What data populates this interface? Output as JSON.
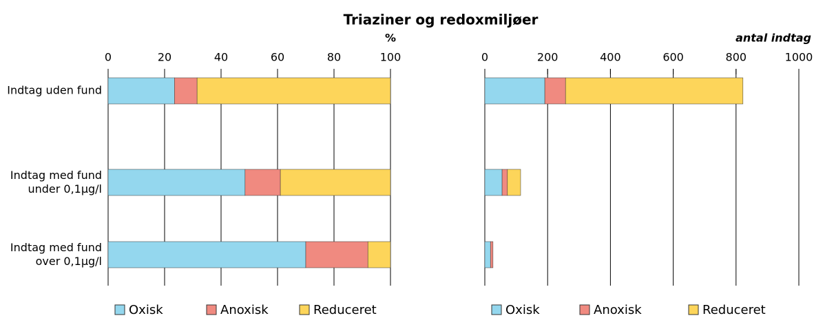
{
  "chart_data": [
    {
      "type": "bar",
      "orientation": "horizontal",
      "stacked": true,
      "title": "Triaziner og redoxmiljøer",
      "xlabel": "%",
      "categories": [
        "Indtag uden fund",
        "Indtag med fund\nunder 0,1µg/l",
        "Indtag med fund\nover 0,1µg/l"
      ],
      "series": [
        {
          "name": "Oxisk",
          "color": "#94d7ee",
          "values": [
            23.5,
            48.5,
            70
          ]
        },
        {
          "name": "Anoxisk",
          "color": "#f08a80",
          "values": [
            8,
            12.5,
            22
          ]
        },
        {
          "name": "Reduceret",
          "color": "#fdd55a",
          "values": [
            68.5,
            39,
            8
          ]
        }
      ],
      "xlim": [
        0,
        100
      ],
      "xticks": [
        0,
        20,
        40,
        60,
        80,
        100
      ],
      "grid": true,
      "legend": "bottom"
    },
    {
      "type": "bar",
      "orientation": "horizontal",
      "stacked": true,
      "xlabel": "antal indtag",
      "series": [
        {
          "name": "Oxisk",
          "color": "#94d7ee",
          "values": [
            191,
            55,
            18
          ]
        },
        {
          "name": "Anoxisk",
          "color": "#f08a80",
          "values": [
            66,
            17,
            8
          ]
        },
        {
          "name": "Reduceret",
          "color": "#fdd55a",
          "values": [
            565,
            42,
            0
          ]
        }
      ],
      "xlim": [
        0,
        1000
      ],
      "xticks": [
        0,
        200,
        400,
        600,
        800,
        1000
      ],
      "grid": true,
      "legend": "bottom"
    }
  ]
}
